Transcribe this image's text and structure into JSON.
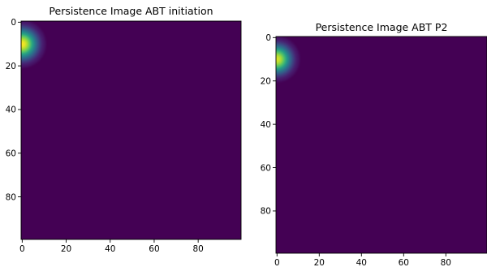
{
  "chart_data": [
    {
      "type": "heatmap",
      "title": "Persistence Image ABT initiation",
      "xlabel": "",
      "ylabel": "",
      "xlim": [
        0,
        99
      ],
      "ylim": [
        99,
        0
      ],
      "xticks": [
        0,
        20,
        40,
        60,
        80
      ],
      "yticks": [
        0,
        20,
        40,
        60,
        80
      ],
      "grid": false,
      "colormap": "viridis",
      "hotspot": {
        "x": 0,
        "y": 10,
        "peak": 1.0
      },
      "background_value": 0.0
    },
    {
      "type": "heatmap",
      "title": "Persistence Image ABT P2",
      "xlabel": "",
      "ylabel": "",
      "xlim": [
        0,
        99
      ],
      "ylim": [
        99,
        0
      ],
      "xticks": [
        0,
        20,
        40,
        60,
        80
      ],
      "yticks": [
        0,
        20,
        40,
        60,
        80
      ],
      "grid": false,
      "colormap": "viridis",
      "hotspot": {
        "x": 0,
        "y": 10,
        "peak": 0.95
      },
      "background_value": 0.0
    }
  ],
  "colors": {
    "viridis_low": "#440154",
    "viridis_mid": "#21918c",
    "viridis_high": "#fde725"
  }
}
